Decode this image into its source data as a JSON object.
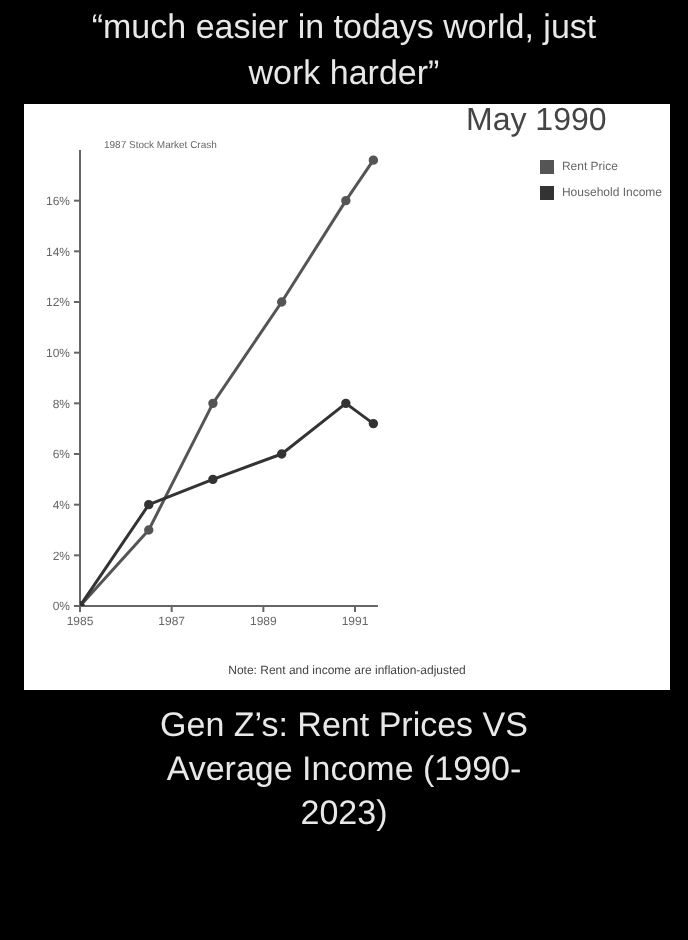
{
  "chart_data": {
    "type": "line",
    "title": "Gen Z’s: Rent Prices VS Average Income (1990-2023)",
    "annotations": [
      "“much easier in todays world, just work harder”",
      "1987 Stock Market Crash",
      "May 1990",
      "Note: Rent and income are inflation-adjusted"
    ],
    "xlim": [
      1985,
      1991.5
    ],
    "xticks": [
      1985,
      1987,
      1989,
      1991
    ],
    "ylim": [
      0,
      18
    ],
    "yticks": [
      {
        "value": 0,
        "label": "0%"
      },
      {
        "value": 2,
        "label": "2%"
      },
      {
        "value": 4,
        "label": "4%"
      },
      {
        "value": 6,
        "label": "6%"
      },
      {
        "value": 8,
        "label": "8%"
      },
      {
        "value": 10,
        "label": "10%"
      },
      {
        "value": 12,
        "label": "12%"
      },
      {
        "value": 14,
        "label": "14%"
      },
      {
        "value": 16,
        "label": "16%"
      }
    ],
    "legend": "top right",
    "marker": "circle",
    "grid": false,
    "series": [
      {
        "name": "Rent Price",
        "color": "#555555",
        "x": [
          1985,
          1986.5,
          1987.9,
          1989.4,
          1990.8,
          1991.4
        ],
        "values": [
          0,
          3,
          8,
          12,
          16,
          17.6
        ]
      },
      {
        "name": "Household Income",
        "color": "#333333",
        "x": [
          1985,
          1986.5,
          1987.9,
          1989.4,
          1990.8,
          1991.4
        ],
        "values": [
          0,
          4,
          5,
          6,
          8,
          7.2
        ]
      }
    ]
  }
}
